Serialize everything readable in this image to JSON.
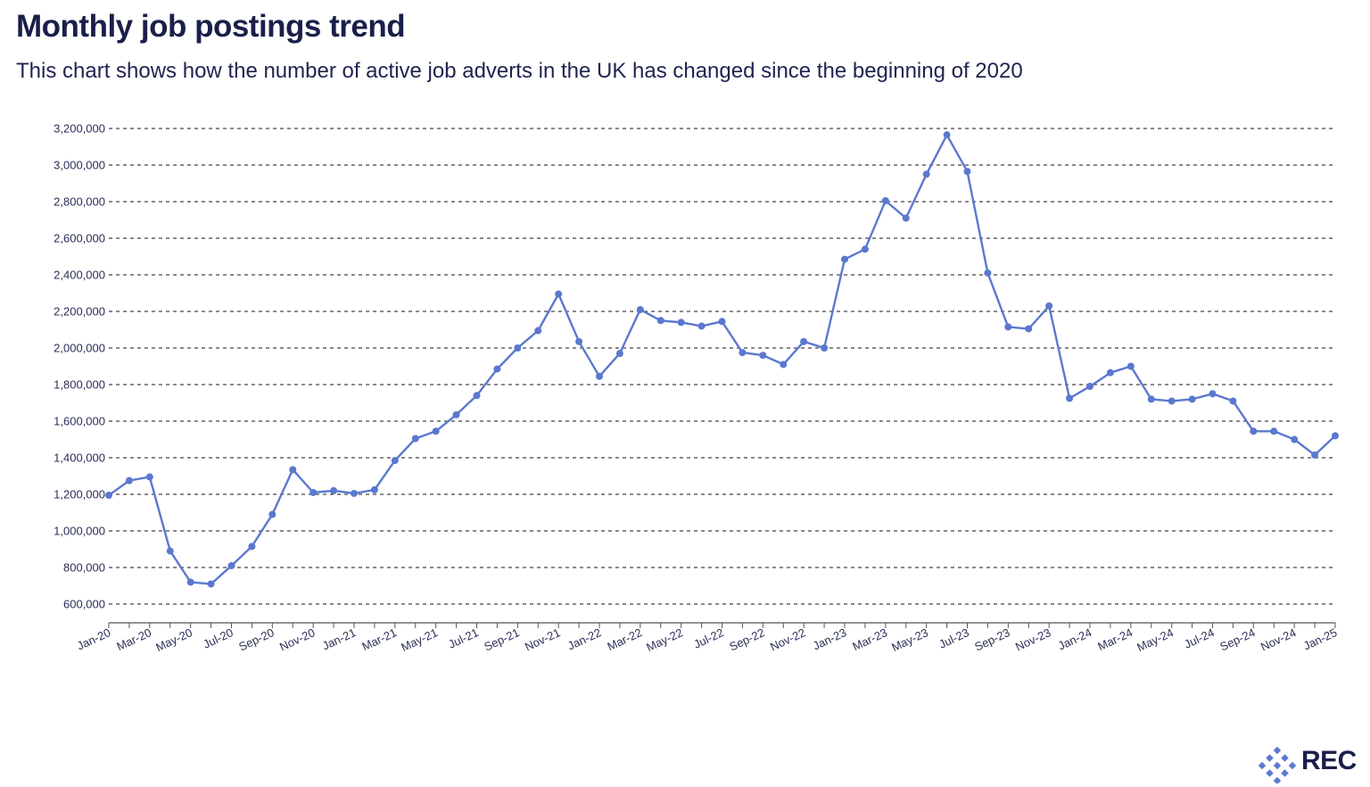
{
  "header": {
    "title": "Monthly job postings trend",
    "subtitle": "This chart shows how the number of active job adverts in the UK has changed since the beginning of 2020"
  },
  "brand": {
    "name": "REC"
  },
  "colors": {
    "line": "#5b78cf",
    "title": "#1a1f4a",
    "logo": "#5b78cf"
  },
  "chart_data": {
    "type": "line",
    "title": "",
    "xlabel": "",
    "ylabel": "",
    "ylim": [
      600000,
      3200000
    ],
    "yticks": [
      600000,
      800000,
      1000000,
      1200000,
      1400000,
      1600000,
      1800000,
      2000000,
      2200000,
      2400000,
      2600000,
      2800000,
      3000000,
      3200000
    ],
    "ytick_labels": [
      "600,000",
      "800,000",
      "1,000,000",
      "1,200,000",
      "1,400,000",
      "1,600,000",
      "1,800,000",
      "2,000,000",
      "2,200,000",
      "2,400,000",
      "2,600,000",
      "2,800,000",
      "3,000,000",
      "3,200,000"
    ],
    "grid": true,
    "x": [
      "Jan-20",
      "Feb-20",
      "Mar-20",
      "Apr-20",
      "May-20",
      "Jun-20",
      "Jul-20",
      "Aug-20",
      "Sep-20",
      "Oct-20",
      "Nov-20",
      "Dec-20",
      "Jan-21",
      "Feb-21",
      "Mar-21",
      "Apr-21",
      "May-21",
      "Jun-21",
      "Jul-21",
      "Aug-21",
      "Sep-21",
      "Oct-21",
      "Nov-21",
      "Dec-21",
      "Jan-22",
      "Feb-22",
      "Mar-22",
      "Apr-22",
      "May-22",
      "Jun-22",
      "Jul-22",
      "Aug-22",
      "Sep-22",
      "Oct-22",
      "Nov-22",
      "Dec-22",
      "Jan-23",
      "Feb-23",
      "Mar-23",
      "Apr-23",
      "May-23",
      "Jun-23",
      "Jul-23",
      "Aug-23",
      "Sep-23",
      "Oct-23",
      "Nov-23",
      "Dec-23",
      "Jan-24",
      "Feb-24",
      "Mar-24",
      "Apr-24",
      "May-24",
      "Jun-24",
      "Jul-24",
      "Aug-24",
      "Sep-24",
      "Oct-24",
      "Nov-24",
      "Dec-24",
      "Jan-25"
    ],
    "xtick_labels": [
      "Jan-20",
      "Mar-20",
      "May-20",
      "Jul-20",
      "Sep-20",
      "Nov-20",
      "Jan-21",
      "Mar-21",
      "May-21",
      "Jul-21",
      "Sep-21",
      "Nov-21",
      "Jan-22",
      "Mar-22",
      "May-22",
      "Jul-22",
      "Sep-22",
      "Nov-22",
      "Jan-23",
      "Mar-23",
      "May-23",
      "Jul-23",
      "Sep-23",
      "Nov-23",
      "Jan-24",
      "Mar-24",
      "May-24",
      "Jul-24",
      "Sep-24",
      "Nov-24",
      "Jan-25"
    ],
    "series": [
      {
        "values": [
          1195000,
          1275000,
          1295000,
          890000,
          720000,
          710000,
          810000,
          915000,
          1090000,
          1335000,
          1210000,
          1220000,
          1205000,
          1225000,
          1385000,
          1505000,
          1545000,
          1635000,
          1740000,
          1885000,
          2000000,
          2095000,
          2295000,
          2035000,
          1845000,
          1970000,
          2210000,
          2150000,
          2140000,
          2120000,
          2145000,
          1975000,
          1960000,
          1910000,
          2035000,
          2000000,
          2485000,
          2540000,
          2805000,
          2710000,
          2950000,
          3165000,
          2965000,
          2410000,
          2115000,
          2105000,
          2230000,
          1725000,
          1790000,
          1865000,
          1900000,
          1720000,
          1710000,
          1720000,
          1750000,
          1710000,
          1545000,
          1545000,
          1500000,
          1415000,
          1520000
        ]
      }
    ]
  }
}
